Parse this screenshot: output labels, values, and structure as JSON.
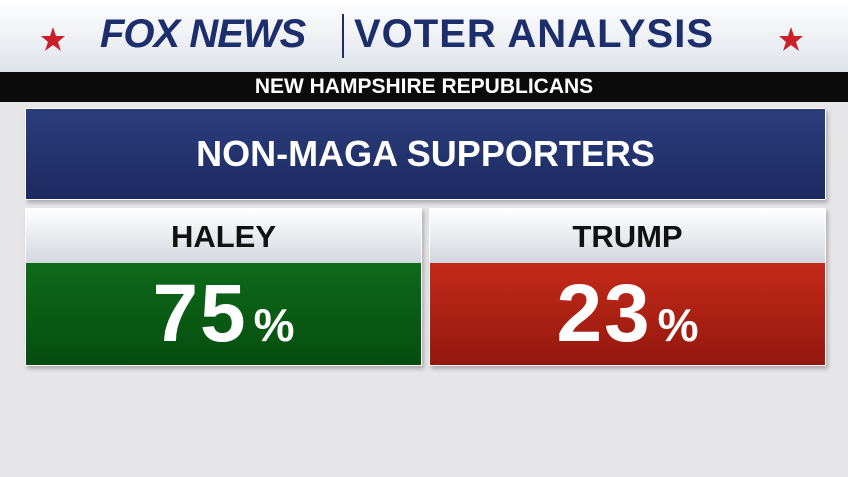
{
  "header": {
    "brand": "FOX NEWS",
    "title": "VOTER ANALYSIS",
    "subtitle": "NEW HAMPSHIRE REPUBLICANS"
  },
  "panel": {
    "title": "NON-MAGA SUPPORTERS",
    "candidates": [
      {
        "name": "HALEY",
        "value": "75",
        "unit": "%"
      },
      {
        "name": "TRUMP",
        "value": "23",
        "unit": "%"
      }
    ]
  }
}
